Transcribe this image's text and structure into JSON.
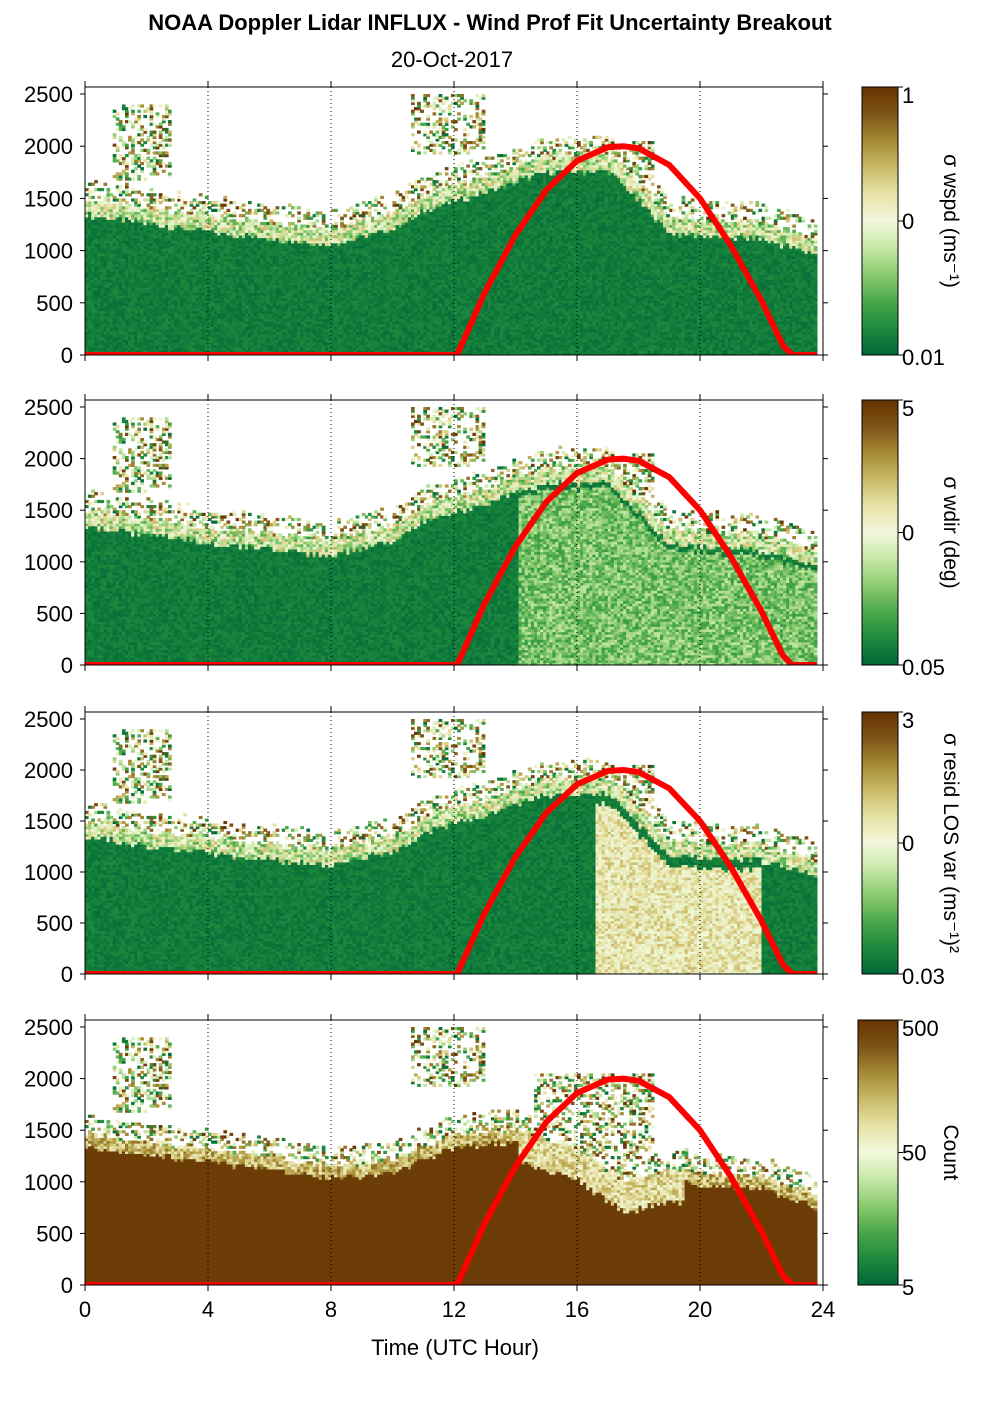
{
  "figure": {
    "title": "NOAA Doppler Lidar INFLUX - Wind Prof Fit Uncertainty Breakout",
    "subtitle": "20-Oct-2017",
    "xlabel": "Time (UTC Hour)"
  },
  "colors": {
    "colormap": [
      "#006837",
      "#1e8a3e",
      "#4aa84a",
      "#8ccb6f",
      "#c6e8a6",
      "#f3f8dc",
      "#e7e2a6",
      "#c9bb69",
      "#a58a34",
      "#7d5418",
      "#663300"
    ],
    "sun_curve": "#ff0000",
    "background": "#ffffff"
  },
  "chart_data": [
    {
      "type": "heatmap",
      "name": "wspd",
      "xlim": [
        0,
        24
      ],
      "ylim": [
        0,
        2500
      ],
      "x_ticks": [
        "0",
        "4",
        "8",
        "12",
        "16",
        "20",
        "24"
      ],
      "y_ticks": [
        "0",
        "500",
        "1000",
        "1500",
        "2000",
        "2500"
      ],
      "colorbar_label": "σ wspd (ms⁻¹)",
      "colorbar_scale": "log",
      "colorbar_ticks": [
        "1",
        "0",
        "0.01"
      ],
      "grid": "dotted vertical at x = 4, 8, 12, 16, 20, 24",
      "boundary_layer_top_m": [
        [
          0,
          1480
        ],
        [
          4,
          1320
        ],
        [
          8,
          1200
        ],
        [
          10,
          1350
        ],
        [
          11.2,
          1550
        ],
        [
          13,
          1700
        ],
        [
          15,
          1900
        ],
        [
          17,
          1900
        ],
        [
          19,
          1300
        ],
        [
          22,
          1250
        ],
        [
          23.8,
          1100
        ]
      ]
    },
    {
      "type": "heatmap",
      "name": "wdir",
      "xlim": [
        0,
        24
      ],
      "ylim": [
        0,
        2500
      ],
      "x_ticks": [
        "0",
        "4",
        "8",
        "12",
        "16",
        "20",
        "24"
      ],
      "y_ticks": [
        "0",
        "500",
        "1000",
        "1500",
        "2000",
        "2500"
      ],
      "colorbar_label": "σ wdir (deg)",
      "colorbar_scale": "log",
      "colorbar_ticks": [
        "5",
        "0",
        "0.05"
      ],
      "grid": "dotted vertical at x = 4, 8, 12, 16, 20, 24",
      "boundary_layer_top_m": [
        [
          0,
          1480
        ],
        [
          4,
          1320
        ],
        [
          8,
          1200
        ],
        [
          10,
          1350
        ],
        [
          11.2,
          1550
        ],
        [
          13,
          1700
        ],
        [
          15,
          1900
        ],
        [
          17,
          1900
        ],
        [
          19,
          1300
        ],
        [
          22,
          1250
        ],
        [
          23.8,
          1100
        ]
      ]
    },
    {
      "type": "heatmap",
      "name": "resid",
      "xlim": [
        0,
        24
      ],
      "ylim": [
        0,
        2500
      ],
      "x_ticks": [
        "0",
        "4",
        "8",
        "12",
        "16",
        "20",
        "24"
      ],
      "y_ticks": [
        "0",
        "500",
        "1000",
        "1500",
        "2000",
        "2500"
      ],
      "colorbar_label": "σ resid LOS var (ms⁻¹)²",
      "colorbar_scale": "log",
      "colorbar_ticks": [
        "3",
        "0",
        "0.03"
      ],
      "grid": "dotted vertical at x = 4, 8, 12, 16, 20, 24",
      "boundary_layer_top_m": [
        [
          0,
          1480
        ],
        [
          4,
          1320
        ],
        [
          8,
          1200
        ],
        [
          10,
          1350
        ],
        [
          11.2,
          1550
        ],
        [
          13,
          1700
        ],
        [
          15,
          1900
        ],
        [
          17,
          1900
        ],
        [
          19,
          1300
        ],
        [
          22,
          1250
        ],
        [
          23.8,
          1100
        ]
      ]
    },
    {
      "type": "heatmap",
      "name": "count",
      "xlim": [
        0,
        24
      ],
      "ylim": [
        0,
        2500
      ],
      "x_ticks": [
        "0",
        "4",
        "8",
        "12",
        "16",
        "20",
        "24"
      ],
      "y_ticks": [
        "0",
        "500",
        "1000",
        "1500",
        "2000",
        "2500"
      ],
      "colorbar_label": "Count",
      "colorbar_scale": "log",
      "colorbar_ticks": [
        "500",
        "50",
        "5"
      ],
      "grid": "dotted vertical at x = 4, 8, 12, 16, 20, 24",
      "boundary_layer_top_m": [
        [
          0,
          1450
        ],
        [
          4,
          1300
        ],
        [
          8,
          1150
        ],
        [
          10,
          1200
        ],
        [
          12,
          1450
        ],
        [
          14,
          1500
        ],
        [
          16,
          1300
        ],
        [
          17.5,
          1000
        ],
        [
          19,
          1100
        ],
        [
          22,
          1050
        ],
        [
          23.8,
          850
        ]
      ]
    }
  ],
  "sun_elevation_curve": {
    "color": "#ff0000",
    "x_hours": [
      0,
      12.1,
      13,
      14,
      15,
      16,
      17,
      17.5,
      18,
      19,
      20,
      21,
      22,
      22.7,
      23,
      23.8
    ],
    "y_m": [
      0,
      0,
      600,
      1150,
      1580,
      1860,
      1990,
      2000,
      1980,
      1820,
      1500,
      1050,
      520,
      90,
      0,
      0
    ]
  }
}
